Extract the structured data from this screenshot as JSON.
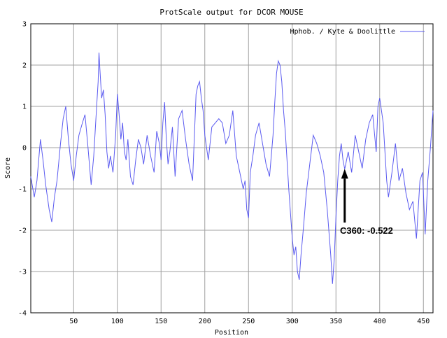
{
  "chart_data": {
    "type": "line",
    "title": "ProtScale output for DCOR MOUSE",
    "xlabel": "Position",
    "ylabel": "Score",
    "xlim": [
      1,
      461
    ],
    "ylim": [
      -4,
      3
    ],
    "x_ticks": [
      "50",
      "100",
      "150",
      "200",
      "250",
      "300",
      "350",
      "400",
      "450"
    ],
    "y_ticks": [
      "3",
      "2",
      "1",
      "0",
      "-1",
      "-2",
      "-3",
      "-4"
    ],
    "grid": true,
    "legend_position": "top-right",
    "series_color": "#5b5bf0",
    "series": [
      {
        "name": "Hphob. / Kyte & Doolittle",
        "x": [
          1,
          5,
          8,
          12,
          15,
          18,
          22,
          25,
          28,
          31,
          35,
          38,
          41,
          44,
          47,
          50,
          53,
          56,
          60,
          63,
          66,
          70,
          73,
          76,
          78,
          79,
          80,
          82,
          84,
          86,
          88,
          90,
          92,
          95,
          98,
          100,
          102,
          104,
          106,
          108,
          110,
          112,
          115,
          118,
          121,
          124,
          127,
          130,
          134,
          138,
          142,
          145,
          148,
          150,
          152,
          154,
          156,
          158,
          160,
          163,
          166,
          170,
          174,
          178,
          182,
          186,
          190,
          192,
          194,
          196,
          198,
          200,
          204,
          208,
          212,
          216,
          220,
          224,
          228,
          232,
          236,
          240,
          244,
          246,
          248,
          250,
          252,
          255,
          258,
          262,
          266,
          270,
          274,
          278,
          280,
          282,
          284,
          286,
          288,
          290,
          292,
          294,
          296,
          298,
          300,
          302,
          304,
          306,
          308,
          310,
          313,
          316,
          320,
          324,
          328,
          332,
          336,
          340,
          344,
          346,
          348,
          350,
          352,
          354,
          356,
          358,
          360,
          364,
          368,
          372,
          376,
          380,
          384,
          388,
          392,
          396,
          398,
          400,
          402,
          404,
          406,
          408,
          410,
          414,
          418,
          422,
          426,
          430,
          434,
          438,
          442,
          446,
          449,
          452,
          455,
          458,
          461
        ],
        "y": [
          -0.7,
          -1.2,
          -0.8,
          0.2,
          -0.3,
          -0.9,
          -1.5,
          -1.8,
          -1.2,
          -0.8,
          0.1,
          0.7,
          1.0,
          0.2,
          -0.4,
          -0.8,
          -0.2,
          0.3,
          0.6,
          0.8,
          0.1,
          -0.9,
          -0.2,
          0.9,
          1.6,
          2.3,
          1.9,
          1.2,
          1.4,
          0.8,
          -0.1,
          -0.5,
          -0.2,
          -0.6,
          0.3,
          1.3,
          0.8,
          0.2,
          0.6,
          -0.1,
          -0.3,
          0.2,
          -0.7,
          -0.9,
          -0.3,
          0.2,
          0.0,
          -0.4,
          0.3,
          -0.2,
          -0.6,
          0.4,
          0.1,
          -0.3,
          0.6,
          1.1,
          0.2,
          -0.4,
          -0.1,
          0.5,
          -0.7,
          0.7,
          0.9,
          0.2,
          -0.4,
          -0.8,
          1.3,
          1.5,
          1.6,
          1.2,
          0.9,
          0.3,
          -0.3,
          0.5,
          0.6,
          0.7,
          0.6,
          0.1,
          0.3,
          0.9,
          -0.2,
          -0.6,
          -1.0,
          -0.8,
          -1.5,
          -1.7,
          -0.6,
          -0.2,
          0.3,
          0.6,
          0.1,
          -0.4,
          -0.7,
          0.3,
          1.1,
          1.8,
          2.1,
          2.0,
          1.6,
          0.9,
          0.4,
          -0.3,
          -1.0,
          -1.6,
          -2.2,
          -2.6,
          -2.4,
          -3.0,
          -3.2,
          -2.6,
          -1.9,
          -1.1,
          -0.4,
          0.3,
          0.1,
          -0.2,
          -0.6,
          -1.5,
          -2.6,
          -3.3,
          -2.7,
          -1.7,
          -0.8,
          -0.2,
          0.1,
          -0.3,
          -0.52,
          -0.1,
          -0.6,
          0.3,
          -0.1,
          -0.5,
          0.2,
          0.6,
          0.8,
          -0.1,
          1.0,
          1.2,
          0.9,
          0.6,
          -0.1,
          -0.8,
          -1.2,
          -0.6,
          0.1,
          -0.8,
          -0.5,
          -1.1,
          -1.5,
          -1.3,
          -2.2,
          -0.8,
          -0.6,
          -2.1,
          -0.8,
          0.0,
          0.9
        ]
      }
    ],
    "annotations": [
      {
        "text": "C360: -0.522",
        "x": 360,
        "y": -0.522
      }
    ]
  }
}
